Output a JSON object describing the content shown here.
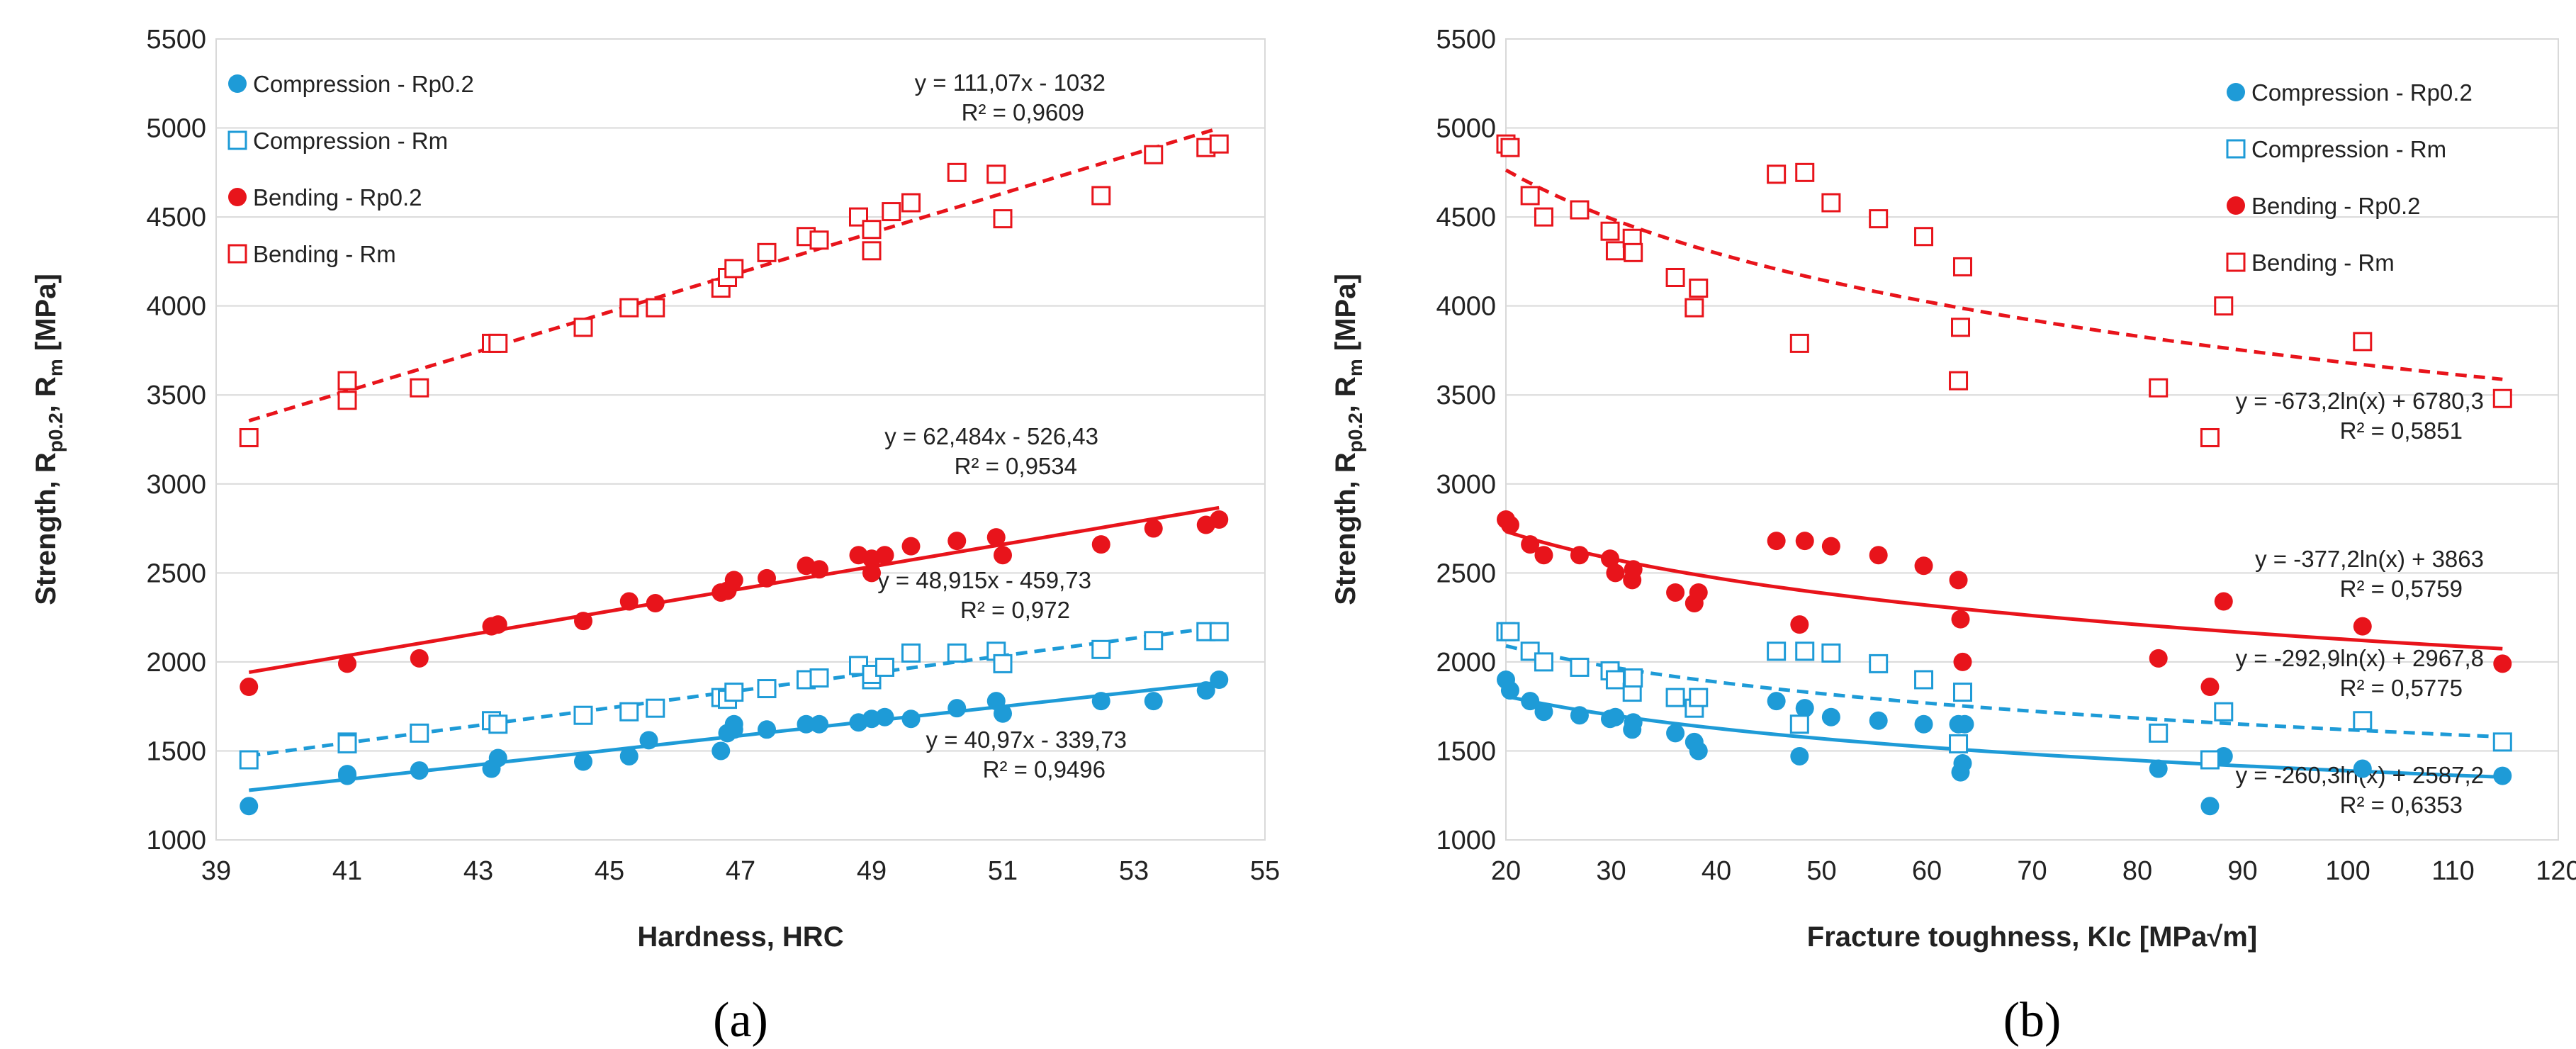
{
  "colors": {
    "blue": "#1E9BD7",
    "red": "#E8141B"
  },
  "chart_data": [
    {
      "type": "scatter",
      "panel_label": "(a)",
      "xlabel": "Hardness, HRC",
      "ylabel": {
        "main": "Strength, R",
        "sub1": "p0.2",
        "mid": ", R",
        "sub2": "m",
        "end": " [MPa]"
      },
      "xlim": [
        39,
        55
      ],
      "ylim": [
        1000,
        5500
      ],
      "xticks": [
        39,
        41,
        43,
        45,
        47,
        49,
        51,
        53,
        55
      ],
      "yticks": [
        1000,
        1500,
        2000,
        2500,
        3000,
        3500,
        4000,
        4500,
        5000,
        5500
      ],
      "grid": "horizontal",
      "legend": [
        "Compression - Rp0.2",
        "Compression - Rm",
        "Bending - Rp0.2",
        "Bending - Rm"
      ],
      "series": [
        {
          "name": "Compression - Rp0.2",
          "marker": "circle",
          "color": "blue",
          "x": [
            39.5,
            41.0,
            41.0,
            42.1,
            43.2,
            43.3,
            44.6,
            45.3,
            45.6,
            46.7,
            46.8,
            46.9,
            46.9,
            47.4,
            48.0,
            48.2,
            48.8,
            49.0,
            49.2,
            49.6,
            50.3,
            50.9,
            51.0,
            52.5,
            53.3,
            54.1,
            54.3
          ],
          "y": [
            1190,
            1370,
            1360,
            1390,
            1400,
            1460,
            1440,
            1470,
            1560,
            1500,
            1600,
            1650,
            1620,
            1620,
            1650,
            1650,
            1660,
            1680,
            1690,
            1680,
            1740,
            1780,
            1710,
            1780,
            1780,
            1840,
            1900
          ]
        },
        {
          "name": "Compression - Rm",
          "marker": "square",
          "color": "blue",
          "x": [
            39.5,
            41.0,
            41.0,
            42.1,
            43.2,
            43.3,
            44.6,
            45.3,
            45.7,
            46.7,
            46.8,
            46.9,
            47.4,
            48.0,
            48.2,
            48.8,
            49.0,
            49.0,
            49.2,
            49.6,
            50.3,
            50.9,
            51.0,
            52.5,
            53.3,
            54.1,
            54.3
          ],
          "y": [
            1450,
            1550,
            1540,
            1600,
            1670,
            1650,
            1700,
            1720,
            1740,
            1800,
            1790,
            1830,
            1850,
            1900,
            1910,
            1980,
            1900,
            1930,
            1970,
            2050,
            2050,
            2060,
            1990,
            2070,
            2120,
            2170,
            2170
          ]
        },
        {
          "name": "Bending - Rp0.2",
          "marker": "circle",
          "color": "red",
          "x": [
            39.5,
            41.0,
            42.1,
            43.2,
            43.3,
            44.6,
            45.3,
            45.7,
            46.7,
            46.8,
            46.9,
            47.4,
            48.0,
            48.2,
            48.8,
            49.0,
            49.0,
            49.2,
            49.6,
            50.3,
            50.9,
            51.0,
            52.5,
            53.3,
            54.1,
            54.3
          ],
          "y": [
            1860,
            1990,
            2020,
            2200,
            2210,
            2230,
            2340,
            2330,
            2390,
            2400,
            2460,
            2470,
            2540,
            2520,
            2600,
            2580,
            2500,
            2600,
            2650,
            2680,
            2700,
            2600,
            2660,
            2750,
            2770,
            2800
          ]
        },
        {
          "name": "Bending - Rm",
          "marker": "square",
          "color": "red",
          "x": [
            39.5,
            41.0,
            41.0,
            42.1,
            43.2,
            43.3,
            44.6,
            45.3,
            45.7,
            46.7,
            46.8,
            46.9,
            47.4,
            48.0,
            48.2,
            48.8,
            49.0,
            49.0,
            49.3,
            49.6,
            50.3,
            50.9,
            51.0,
            52.5,
            53.3,
            54.1,
            54.3
          ],
          "y": [
            3260,
            3580,
            3470,
            3540,
            3790,
            3790,
            3880,
            3990,
            3990,
            4100,
            4160,
            4210,
            4300,
            4390,
            4370,
            4500,
            4430,
            4310,
            4530,
            4580,
            4750,
            4740,
            4490,
            4620,
            4850,
            4890,
            4910
          ]
        }
      ],
      "trendlines": [
        {
          "series": "Compression - Rp0.2",
          "kind": "linear",
          "a": 40.97,
          "b": -339.73,
          "style": "solid",
          "x_range": [
            39.5,
            54.3
          ],
          "equation": "y = 40,97x - 339,73",
          "r2": "R² = 0,9496"
        },
        {
          "series": "Compression - Rm",
          "kind": "linear",
          "a": 48.915,
          "b": -459.73,
          "style": "dashed",
          "x_range": [
            39.5,
            54.3
          ],
          "equation": "y = 48,915x - 459,73",
          "r2": "R² = 0,972"
        },
        {
          "series": "Bending - Rp0.2",
          "kind": "linear",
          "a": 62.484,
          "b": -526.43,
          "style": "solid",
          "x_range": [
            39.5,
            54.3
          ],
          "equation": "y = 62,484x - 526,43",
          "r2": "R² = 0,9534"
        },
        {
          "series": "Bending - Rm",
          "kind": "linear",
          "a": 111.07,
          "b": -1032,
          "style": "dashed",
          "x_range": [
            39.5,
            54.3
          ],
          "equation": "y = 111,07x - 1032",
          "r2": "R² = 0,9609"
        }
      ]
    },
    {
      "type": "scatter",
      "panel_label": "(b)",
      "xlabel": "Fracture toughness, KIc [MPa√m]",
      "ylabel": {
        "main": "Strength, R",
        "sub1": "p0.2",
        "mid": ", R",
        "sub2": "m",
        "end": " [MPa]"
      },
      "xlim": [
        20,
        120
      ],
      "ylim": [
        1000,
        5500
      ],
      "xticks": [
        20,
        30,
        40,
        50,
        60,
        70,
        80,
        90,
        100,
        110,
        120
      ],
      "yticks": [
        1000,
        1500,
        2000,
        2500,
        3000,
        3500,
        4000,
        4500,
        5000,
        5500
      ],
      "grid": "horizontal",
      "legend": [
        "Compression - Rp0.2",
        "Compression - Rm",
        "Bending - Rp0.2",
        "Bending - Rm"
      ],
      "series": [
        {
          "name": "Compression - Rp0.2",
          "marker": "circle",
          "color": "blue",
          "x": [
            20.0,
            20.4,
            22.3,
            23.6,
            27.0,
            29.9,
            30.4,
            32.0,
            32.1,
            36.1,
            37.9,
            38.3,
            45.7,
            47.9,
            48.4,
            50.9,
            55.4,
            59.7,
            63.0,
            63.2,
            63.4,
            63.6,
            82.0,
            86.9,
            88.2,
            101.4,
            114.7
          ],
          "y": [
            1900,
            1840,
            1780,
            1720,
            1700,
            1680,
            1690,
            1620,
            1660,
            1600,
            1550,
            1500,
            1780,
            1470,
            1740,
            1690,
            1670,
            1650,
            1650,
            1380,
            1430,
            1650,
            1400,
            1190,
            1470,
            1400,
            1360
          ]
        },
        {
          "name": "Compression - Rm",
          "marker": "square",
          "color": "blue",
          "x": [
            20.0,
            20.4,
            22.3,
            23.6,
            27.0,
            29.9,
            30.4,
            32.0,
            32.1,
            36.1,
            37.9,
            38.3,
            45.7,
            47.9,
            48.4,
            50.9,
            55.4,
            59.7,
            63.0,
            63.4,
            82.0,
            86.9,
            88.2,
            101.4,
            114.7
          ],
          "y": [
            2170,
            2170,
            2060,
            2000,
            1970,
            1950,
            1900,
            1830,
            1910,
            1800,
            1740,
            1800,
            2060,
            1650,
            2060,
            2050,
            1990,
            1900,
            1540,
            1830,
            1600,
            1450,
            1720,
            1670,
            1550
          ]
        },
        {
          "name": "Bending - Rp0.2",
          "marker": "circle",
          "color": "red",
          "x": [
            20.0,
            20.4,
            22.3,
            23.6,
            27.0,
            29.9,
            30.4,
            32.0,
            32.1,
            36.1,
            37.9,
            38.3,
            45.7,
            47.9,
            48.4,
            50.9,
            55.4,
            59.7,
            63.0,
            63.2,
            63.4,
            82.0,
            86.9,
            88.2,
            101.4,
            114.7
          ],
          "y": [
            2800,
            2770,
            2660,
            2600,
            2600,
            2580,
            2500,
            2460,
            2520,
            2390,
            2330,
            2390,
            2680,
            2210,
            2680,
            2650,
            2600,
            2540,
            2460,
            2240,
            2000,
            2020,
            1860,
            2340,
            2200,
            1990
          ]
        },
        {
          "name": "Bending - Rm",
          "marker": "square",
          "color": "red",
          "x": [
            20.0,
            20.4,
            22.3,
            23.6,
            27.0,
            29.9,
            30.4,
            32.0,
            32.1,
            36.1,
            37.9,
            38.3,
            45.7,
            47.9,
            48.4,
            50.9,
            55.4,
            59.7,
            63.0,
            63.2,
            63.4,
            82.0,
            86.9,
            88.2,
            101.4,
            114.7
          ],
          "y": [
            4910,
            4890,
            4620,
            4500,
            4540,
            4420,
            4310,
            4380,
            4300,
            4160,
            3990,
            4100,
            4740,
            3790,
            4750,
            4580,
            4490,
            4390,
            3580,
            3880,
            4220,
            3540,
            3260,
            4000,
            3800,
            3480
          ]
        }
      ],
      "trendlines": [
        {
          "series": "Compression - Rp0.2",
          "kind": "log",
          "a": -260.3,
          "b": 2587.2,
          "style": "solid",
          "x_range": [
            20,
            114.7
          ],
          "equation": "y = -260,3ln(x) + 2587,2",
          "r2": "R² = 0,6353"
        },
        {
          "series": "Compression - Rm",
          "kind": "log",
          "a": -292.9,
          "b": 2967.8,
          "style": "dashed",
          "x_range": [
            20,
            114.7
          ],
          "equation": "y = -292,9ln(x) + 2967,8",
          "r2": "R² = 0,5775"
        },
        {
          "series": "Bending - Rp0.2",
          "kind": "log",
          "a": -377.2,
          "b": 3863,
          "style": "solid",
          "x_range": [
            20,
            114.7
          ],
          "equation": "y = -377,2ln(x) + 3863",
          "r2": "R² = 0,5759"
        },
        {
          "series": "Bending - Rm",
          "kind": "log",
          "a": -673.2,
          "b": 6780.3,
          "style": "dashed",
          "x_range": [
            20,
            114.7
          ],
          "equation": "y = -673,2ln(x) + 6780,3",
          "r2": "R² = 0,5851"
        }
      ]
    }
  ]
}
